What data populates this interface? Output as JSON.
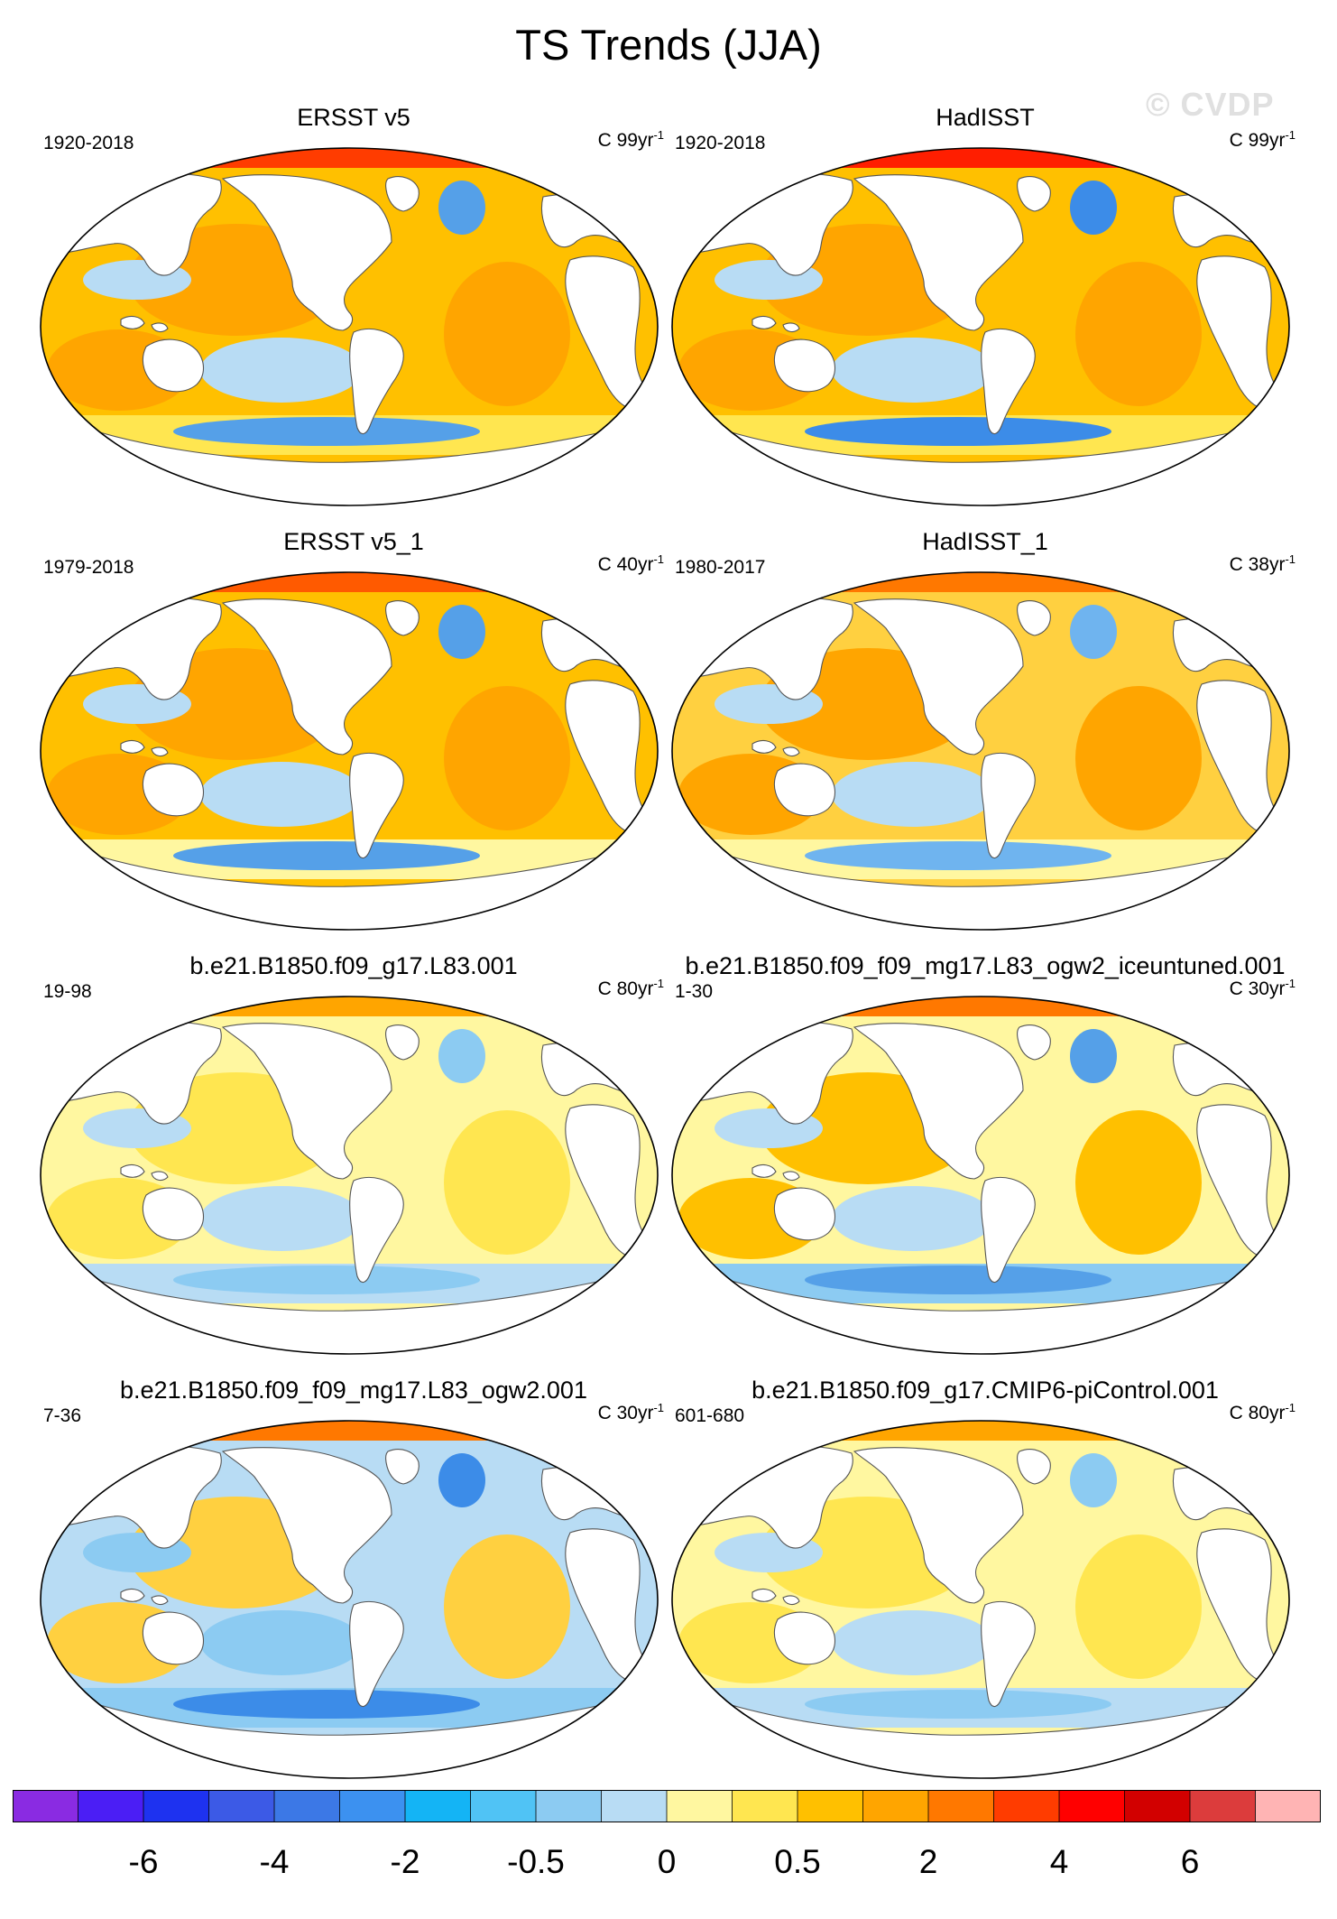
{
  "title": "TS Trends (JJA)",
  "watermark": "© CVDP",
  "units_prefix": "C ",
  "units_suffix": "yr",
  "units_exponent": "-1",
  "panels": [
    {
      "id": "p1",
      "title": "ERSST v5",
      "period": "1920-2018",
      "per": "99",
      "colors": {
        "base": "#ffc000",
        "shade": "#ffa500",
        "hot": "#ff3c00",
        "cool": "#b8dcf4",
        "cold": "#55a0e8",
        "polar": "#ffe650"
      }
    },
    {
      "id": "p2",
      "title": "HadISST",
      "period": "1920-2018",
      "per": "99",
      "colors": {
        "base": "#ffc000",
        "shade": "#ffa500",
        "hot": "#ff1e00",
        "cool": "#b8dcf4",
        "cold": "#3c8ce8",
        "polar": "#ffe650"
      }
    },
    {
      "id": "p3",
      "title": "ERSST v5_1",
      "period": "1979-2018",
      "per": "40",
      "colors": {
        "base": "#ffc000",
        "shade": "#ffa500",
        "hot": "#ff5a00",
        "cool": "#b8dcf4",
        "cold": "#55a0e8",
        "polar": "#fff7a0"
      }
    },
    {
      "id": "p4",
      "title": "HadISST_1",
      "period": "1980-2017",
      "per": "38",
      "colors": {
        "base": "#ffd040",
        "shade": "#ffa500",
        "hot": "#ff7800",
        "cool": "#b8dcf4",
        "cold": "#6fb4ef",
        "polar": "#fff7a0"
      }
    },
    {
      "id": "p5",
      "title": "b.e21.B1850.f09_g17.L83.001",
      "period": "19-98",
      "per": "80",
      "colors": {
        "base": "#fff7a0",
        "shade": "#ffe650",
        "hot": "#ffa500",
        "cool": "#b8dcf4",
        "cold": "#8ccbf2",
        "polar": "#b8dcf4"
      }
    },
    {
      "id": "p6",
      "title": "b.e21.B1850.f09_f09_mg17.L83_ogw2_iceuntuned.001",
      "period": "1-30",
      "per": "30",
      "colors": {
        "base": "#fff7a0",
        "shade": "#ffc000",
        "hot": "#ff7800",
        "cool": "#b8dcf4",
        "cold": "#55a0e8",
        "polar": "#8ccbf2"
      }
    },
    {
      "id": "p7",
      "title": "b.e21.B1850.f09_f09_mg17.L83_ogw2.001",
      "period": "7-36",
      "per": "30",
      "colors": {
        "base": "#b8dcf4",
        "shade": "#ffd040",
        "hot": "#ff7800",
        "cool": "#8ccbf2",
        "cold": "#3c8ce8",
        "polar": "#8ccbf2"
      }
    },
    {
      "id": "p8",
      "title": "b.e21.B1850.f09_g17.CMIP6-piControl.001",
      "period": "601-680",
      "per": "80",
      "colors": {
        "base": "#fff7a0",
        "shade": "#ffe650",
        "hot": "#ffa500",
        "cool": "#b8dcf4",
        "cold": "#8ccbf2",
        "polar": "#b8dcf4"
      }
    }
  ],
  "colorbar": {
    "colors": [
      "#8a2be2",
      "#4b1ef5",
      "#1e32f0",
      "#3c5ae6",
      "#3c78e6",
      "#3c91f0",
      "#14b4f5",
      "#50c3f5",
      "#8ccbf2",
      "#b8dcf4",
      "#fff7a0",
      "#ffe650",
      "#ffc000",
      "#ffa500",
      "#ff7800",
      "#ff3c00",
      "#ff0000",
      "#d20000",
      "#dc3c3c",
      "#ffb4b4"
    ],
    "labels": [
      "-6",
      "-4",
      "-2",
      "-0.5",
      "0",
      "0.5",
      "2",
      "4",
      "6"
    ],
    "label_boundaries": [
      2,
      4,
      6,
      8,
      10,
      12,
      14,
      16,
      18
    ]
  }
}
